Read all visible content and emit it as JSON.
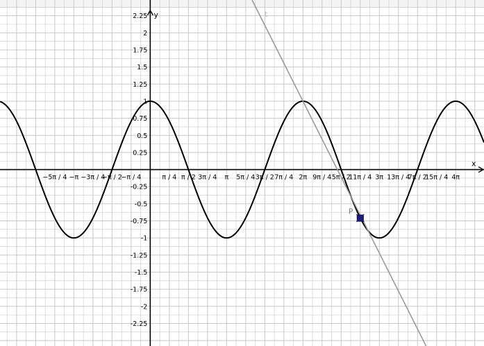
{
  "graphics": {
    "axes": {
      "x_label": "x",
      "y_label": "y",
      "x_range": [
        -6.18,
        13.73
      ],
      "y_range": [
        -2.58,
        2.48
      ],
      "x_ticks": [
        {
          "value": -3.927,
          "label": "−5π / 4"
        },
        {
          "value": -3.1416,
          "label": "−π"
        },
        {
          "value": -2.3562,
          "label": "−3π / 4"
        },
        {
          "value": -1.5708,
          "label": "−π / 2"
        },
        {
          "value": -0.7854,
          "label": "−π / 4"
        },
        {
          "value": 0.7854,
          "label": "π / 4"
        },
        {
          "value": 1.5708,
          "label": "π / 2"
        },
        {
          "value": 2.3562,
          "label": "3π / 4"
        },
        {
          "value": 3.1416,
          "label": "π"
        },
        {
          "value": 3.927,
          "label": "5π / 4"
        },
        {
          "value": 4.7124,
          "label": "3π / 2"
        },
        {
          "value": 5.4978,
          "label": "7π / 4"
        },
        {
          "value": 6.2832,
          "label": "2π"
        },
        {
          "value": 7.0686,
          "label": "9π / 4"
        },
        {
          "value": 7.854,
          "label": "5π / 2"
        },
        {
          "value": 8.6394,
          "label": "11π / 4"
        },
        {
          "value": 9.4248,
          "label": "3π"
        },
        {
          "value": 10.2102,
          "label": "13π / 4"
        },
        {
          "value": 10.9956,
          "label": "7π / 2"
        },
        {
          "value": 11.781,
          "label": "15π / 4"
        },
        {
          "value": 12.5664,
          "label": "4π"
        }
      ],
      "y_ticks": [
        {
          "value": 2.25,
          "label": "2.25"
        },
        {
          "value": 2,
          "label": "2"
        },
        {
          "value": 1.75,
          "label": "1.75"
        },
        {
          "value": 1.5,
          "label": "1.5"
        },
        {
          "value": 1.25,
          "label": "1.25"
        },
        {
          "value": 1,
          "label": "1"
        },
        {
          "value": 0.75,
          "label": "0.75"
        },
        {
          "value": 0.5,
          "label": "0.5"
        },
        {
          "value": 0.25,
          "label": "0.25"
        },
        {
          "value": -0.25,
          "label": "-0.25"
        },
        {
          "value": -0.5,
          "label": "-0.5"
        },
        {
          "value": -0.75,
          "label": "-0.75"
        },
        {
          "value": -1,
          "label": "-1"
        },
        {
          "value": -1.25,
          "label": "-1.25"
        },
        {
          "value": -1.5,
          "label": "-1.5"
        },
        {
          "value": -1.75,
          "label": "-1.75"
        },
        {
          "value": -2,
          "label": "-2"
        },
        {
          "value": -2.25,
          "label": "-2.25"
        }
      ]
    },
    "objects": {
      "curve": {
        "function": "cos(x)",
        "color": "#000000"
      },
      "tangent_line": {
        "label": "t",
        "slope": -0.707,
        "passes_through": [
          6.2832,
          1.0
        ],
        "color": "#999999"
      },
      "point": {
        "label": "P",
        "x": 8.64,
        "y": -0.71,
        "fill": "#1f1f7a",
        "label_color": "#808080"
      }
    },
    "colors": {
      "grid": "#c8c8c8",
      "axis": "#000000",
      "background": "#ffffff"
    }
  }
}
